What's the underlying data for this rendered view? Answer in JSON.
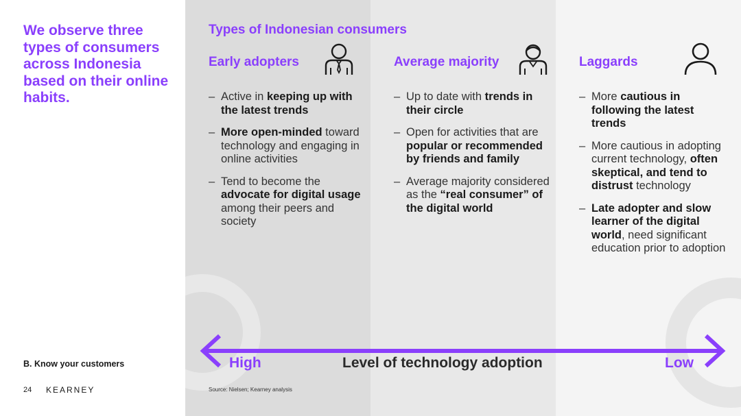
{
  "headline": "We observe three types of consumers across Indonesia based on their online habits.",
  "section_label": "B. Know your customers",
  "page_number": "24",
  "brand": "KEARNEY",
  "section_title": "Types of Indonesian consumers",
  "colors": {
    "accent": "#8a3ffc",
    "text": "#1a1a1a"
  },
  "columns": [
    {
      "title": "Early adopters",
      "icon": "businessman-icon",
      "bullets": [
        [
          {
            "t": "Active in "
          },
          {
            "t": "keeping up with the latest trends",
            "b": true
          }
        ],
        [
          {
            "t": "More open-minded",
            "b": true
          },
          {
            "t": " toward technology and engaging in online activities"
          }
        ],
        [
          {
            "t": "Tend to become the "
          },
          {
            "t": "advocate for digital usage",
            "b": true
          },
          {
            "t": " among their peers and society"
          }
        ]
      ]
    },
    {
      "title": "Average majority",
      "icon": "woman-icon",
      "bullets": [
        [
          {
            "t": "Up to date with "
          },
          {
            "t": "trends in their circle",
            "b": true
          }
        ],
        [
          {
            "t": "Open for activities that are "
          },
          {
            "t": "popular or recommended by friends and family",
            "b": true
          }
        ],
        [
          {
            "t": "Average majority considered as the "
          },
          {
            "t": "“real consumer” of the digital world",
            "b": true
          }
        ]
      ]
    },
    {
      "title": "Laggards",
      "icon": "person-icon",
      "bullets": [
        [
          {
            "t": "More "
          },
          {
            "t": "cautious in following the latest trends",
            "b": true
          }
        ],
        [
          {
            "t": "More cautious in adopting current technology, "
          },
          {
            "t": "often skeptical, and tend to distrust",
            "b": true
          },
          {
            "t": " technology"
          }
        ],
        [
          {
            "t": "Late adopter and slow learner of the digital world",
            "b": true
          },
          {
            "t": ", need significant education prior to adoption"
          }
        ]
      ]
    }
  ],
  "axis": {
    "high": "High",
    "low": "Low",
    "label": "Level of technology adoption"
  },
  "source": "Source: Nielsen; Kearney analysis"
}
